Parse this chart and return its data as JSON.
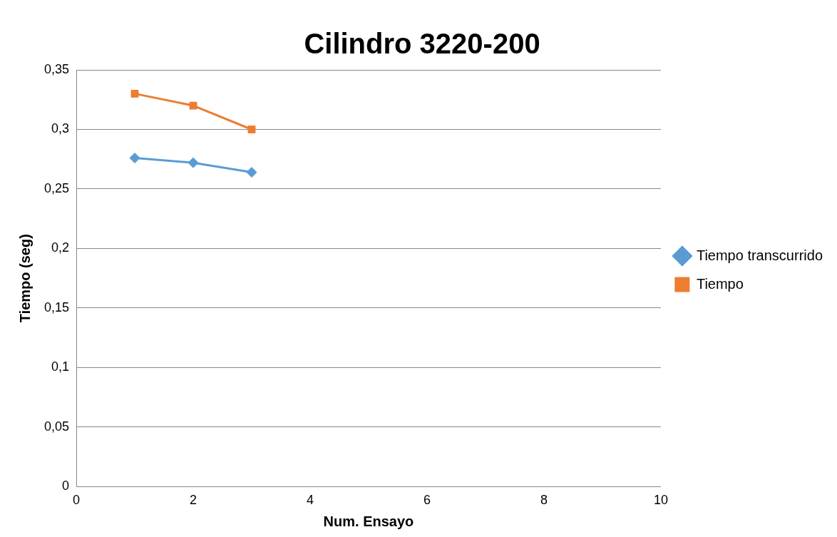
{
  "chart_data": {
    "type": "line",
    "title": "Cilindro 3220-200",
    "xlabel": "Num. Ensayo",
    "ylabel": "Tiempo (seg)",
    "x": [
      1,
      2,
      3
    ],
    "series": [
      {
        "name": "Tiempo transcurrido",
        "color": "#5b9bd5",
        "marker": "diamond",
        "values": [
          0.276,
          0.272,
          0.264
        ]
      },
      {
        "name": "Tiempo",
        "color": "#ed7d31",
        "marker": "square",
        "values": [
          0.33,
          0.32,
          0.3
        ]
      }
    ],
    "xlim": [
      0,
      10
    ],
    "xticks": [
      0,
      2,
      4,
      6,
      8,
      10
    ],
    "ylim": [
      0,
      0.35
    ],
    "yticks": [
      {
        "value": 0,
        "label": "0"
      },
      {
        "value": 0.05,
        "label": "0,05"
      },
      {
        "value": 0.1,
        "label": "0,1"
      },
      {
        "value": 0.15,
        "label": "0,15"
      },
      {
        "value": 0.2,
        "label": "0,2"
      },
      {
        "value": 0.25,
        "label": "0,25"
      },
      {
        "value": 0.3,
        "label": "0,3"
      },
      {
        "value": 0.35,
        "label": "0,35"
      }
    ],
    "grid": "y",
    "legend": "right",
    "line_style": "solid"
  }
}
